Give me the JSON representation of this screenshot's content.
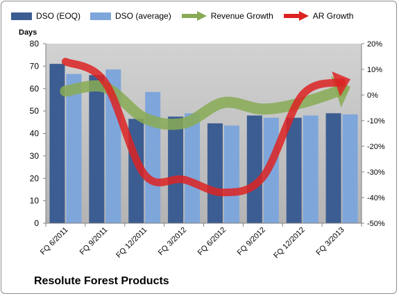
{
  "chart_data": {
    "type": "bar",
    "title": "Resolute Forest Products",
    "ylabel_left": "Days",
    "ylim_left": [
      0,
      80
    ],
    "yticks_left": [
      "0",
      "10",
      "20",
      "30",
      "40",
      "50",
      "60",
      "70",
      "80"
    ],
    "ylim_right": [
      -50,
      20
    ],
    "yticks_right": [
      "-50%",
      "-40%",
      "-30%",
      "-20%",
      "-10%",
      "0%",
      "10%",
      "20%"
    ],
    "categories": [
      "FQ 6/2011",
      "FQ 9/2011",
      "FQ 12/2011",
      "FQ 3/2012",
      "FQ 6/2012",
      "FQ 9/2012",
      "FQ 12/2012",
      "FQ 3/2013"
    ],
    "bar_series": [
      {
        "name": "DSO (EOQ)",
        "color": "#3c5d92",
        "values": [
          71,
          66,
          46.5,
          47.5,
          44.5,
          48,
          47,
          49
        ]
      },
      {
        "name": "DSO (average)",
        "color": "#7ea6db",
        "values": [
          66.5,
          68.5,
          58.5,
          49,
          43.5,
          47,
          48,
          48.5
        ]
      }
    ],
    "line_series": [
      {
        "name": "Revenue Growth",
        "color": "#88aa55",
        "axis": "right",
        "values": [
          1.5,
          3,
          -9,
          -11,
          -3,
          -5.5,
          -3,
          2
        ]
      },
      {
        "name": "AR Growth",
        "color": "#dd2222",
        "axis": "right",
        "values": [
          13,
          5,
          -31,
          -33,
          -38,
          -32,
          0,
          5
        ]
      }
    ],
    "plot_background": "#c0c0c0",
    "grid": false,
    "legend_position": "top"
  }
}
